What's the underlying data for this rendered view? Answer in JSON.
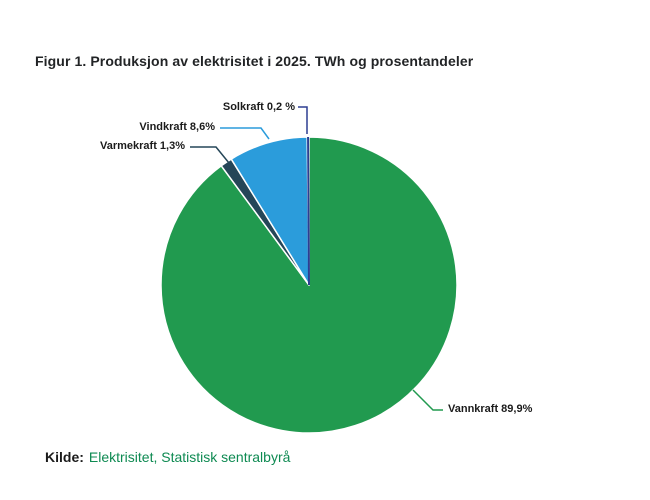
{
  "figure": {
    "title": "Figur 1. Produksjon av elektrisitet i 2025. TWh og prosentandeler",
    "source_prefix": "Kilde:",
    "source_text": "Elektrisitet, Statistisk sentralbyrå",
    "source_link_color": "#0E8A52",
    "title_color": "#222426"
  },
  "chart_data": {
    "type": "pie",
    "title": "Figur 1. Produksjon av elektrisitet i 2025. TWh og prosentandeler",
    "unit": "percent",
    "start_angle_deg": 0,
    "direction": "clockwise",
    "legend_position": "none",
    "labels_style": "callout",
    "slices": [
      {
        "label": "Vannkraft",
        "value": 89.9,
        "display_label": "Vannkraft 89,9%",
        "color": "#219A4F"
      },
      {
        "label": "Varmekraft",
        "value": 1.3,
        "display_label": "Varmekraft 1,3%",
        "color": "#254658"
      },
      {
        "label": "Vindkraft",
        "value": 8.6,
        "display_label": "Vindkraft 8,6%",
        "color": "#2B9CDB"
      },
      {
        "label": "Solkraft",
        "value": 0.2,
        "display_label": "Solkraft 0,2 %",
        "color": "#2D3E92"
      }
    ]
  }
}
